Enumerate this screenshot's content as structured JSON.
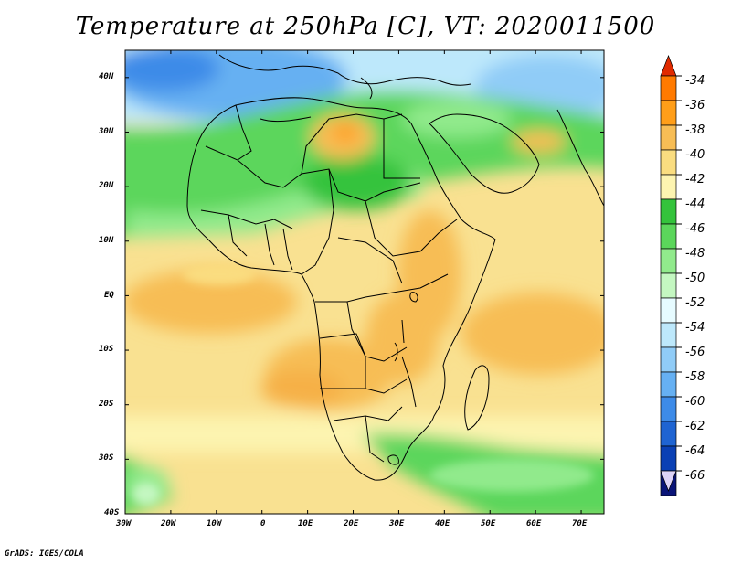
{
  "title": "Temperature at 250hPa [C], VT: 2020011500",
  "footer": "GrADS: IGES/COLA",
  "map": {
    "lon_range": [
      -30,
      75
    ],
    "lat_range": [
      -40,
      45
    ],
    "lat_ticks": [
      "40N",
      "30N",
      "20N",
      "10N",
      "EQ",
      "10S",
      "20S",
      "30S",
      "40S"
    ],
    "lon_ticks": [
      "30W",
      "20W",
      "10W",
      "0",
      "10E",
      "20E",
      "30E",
      "40E",
      "50E",
      "60E",
      "70E"
    ]
  },
  "colorbar": {
    "labels": [
      "-34",
      "-36",
      "-38",
      "-40",
      "-42",
      "-44",
      "-46",
      "-48",
      "-50",
      "-52",
      "-54",
      "-56",
      "-58",
      "-60",
      "-62",
      "-64",
      "-66"
    ],
    "colors": [
      "#ff4a00",
      "#ff7a00",
      "#ff9e19",
      "#f7bd55",
      "#fadd80",
      "#fdf4b0",
      "#34c33c",
      "#5bd65b",
      "#91ea8c",
      "#c4f7c1",
      "#e6fbff",
      "#bde8fb",
      "#90ccf7",
      "#66b0f2",
      "#3d8be8",
      "#1f64d2",
      "#0a40b4",
      "#0a1478"
    ],
    "top_arrow_color": "#e02a00",
    "bottom_arrow_color": "#ded4f7"
  }
}
